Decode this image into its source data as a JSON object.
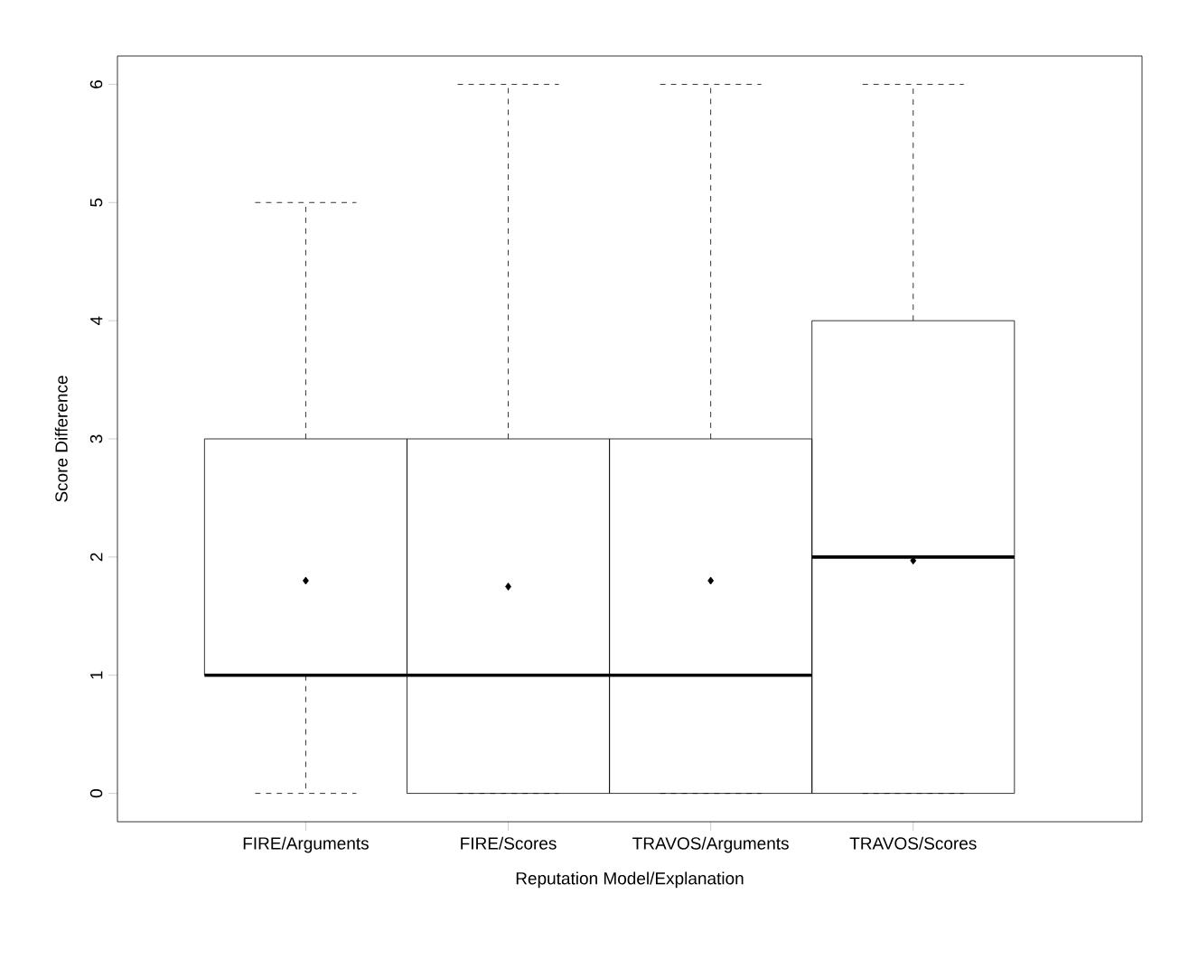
{
  "chart_data": {
    "type": "box",
    "xlabel": "Reputation Model/Explanation",
    "ylabel": "Score Difference",
    "categories": [
      "FIRE/Arguments",
      "FIRE/Scores",
      "TRAVOS/Arguments",
      "TRAVOS/Scores"
    ],
    "boxes": [
      {
        "low": 0,
        "q1": 1,
        "median": 1,
        "q3": 3,
        "high": 5,
        "mean": 1.8
      },
      {
        "low": 0,
        "q1": 0,
        "median": 1,
        "q3": 3,
        "high": 6,
        "mean": 1.75
      },
      {
        "low": 0,
        "q1": 0,
        "median": 1,
        "q3": 3,
        "high": 6,
        "mean": 1.8
      },
      {
        "low": 0,
        "q1": 0,
        "median": 2,
        "q3": 4,
        "high": 6,
        "mean": 1.97
      }
    ],
    "ylim": [
      -0.24,
      6.24
    ],
    "yticks": [
      0,
      1,
      2,
      3,
      4,
      5,
      6
    ],
    "grid": false
  }
}
